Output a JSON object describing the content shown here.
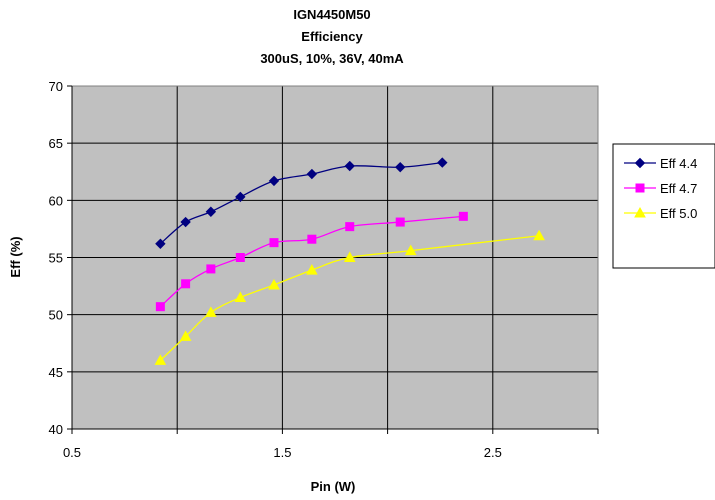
{
  "chart_data": {
    "type": "line",
    "title_lines": [
      "IGN4450M50",
      "Efficiency",
      "300uS, 10%, 36V, 40mA"
    ],
    "xlabel": "Pin (W)",
    "ylabel": "Eff (%)",
    "xlim": [
      0.5,
      3.0
    ],
    "ylim": [
      40,
      70
    ],
    "xticks": [
      0.5,
      1.5,
      2.5
    ],
    "xtick_labels": [
      "0.5",
      "1.5",
      "2.5"
    ],
    "x_gridlines": [
      0.5,
      1.0,
      1.5,
      2.0,
      2.5,
      3.0
    ],
    "yticks": [
      40,
      45,
      50,
      55,
      60,
      65,
      70
    ],
    "ytick_labels": [
      "40",
      "45",
      "50",
      "55",
      "60",
      "65",
      "70"
    ],
    "grid": true,
    "plot_background": "#c0c0c0",
    "legend_position": "right",
    "smooth": true,
    "series": [
      {
        "name": "Eff 4.4",
        "color": "#000080",
        "marker": "diamond",
        "x": [
          0.92,
          1.04,
          1.16,
          1.3,
          1.46,
          1.64,
          1.82,
          2.06,
          2.26
        ],
        "y": [
          56.2,
          58.1,
          59.0,
          60.3,
          61.7,
          62.3,
          63.0,
          62.9,
          63.3
        ]
      },
      {
        "name": "Eff 4.7",
        "color": "#ff00ff",
        "marker": "square",
        "x": [
          0.92,
          1.04,
          1.16,
          1.3,
          1.46,
          1.64,
          1.82,
          2.06,
          2.36
        ],
        "y": [
          50.7,
          52.7,
          54.0,
          55.0,
          56.3,
          56.6,
          57.7,
          58.1,
          58.6
        ]
      },
      {
        "name": "Eff 5.0",
        "color": "#ffff00",
        "marker": "triangle",
        "x": [
          0.92,
          1.04,
          1.16,
          1.3,
          1.46,
          1.64,
          1.82,
          2.11,
          2.72
        ],
        "y": [
          46.0,
          48.1,
          50.2,
          51.5,
          52.6,
          53.9,
          55.0,
          55.6,
          56.9
        ]
      }
    ]
  }
}
